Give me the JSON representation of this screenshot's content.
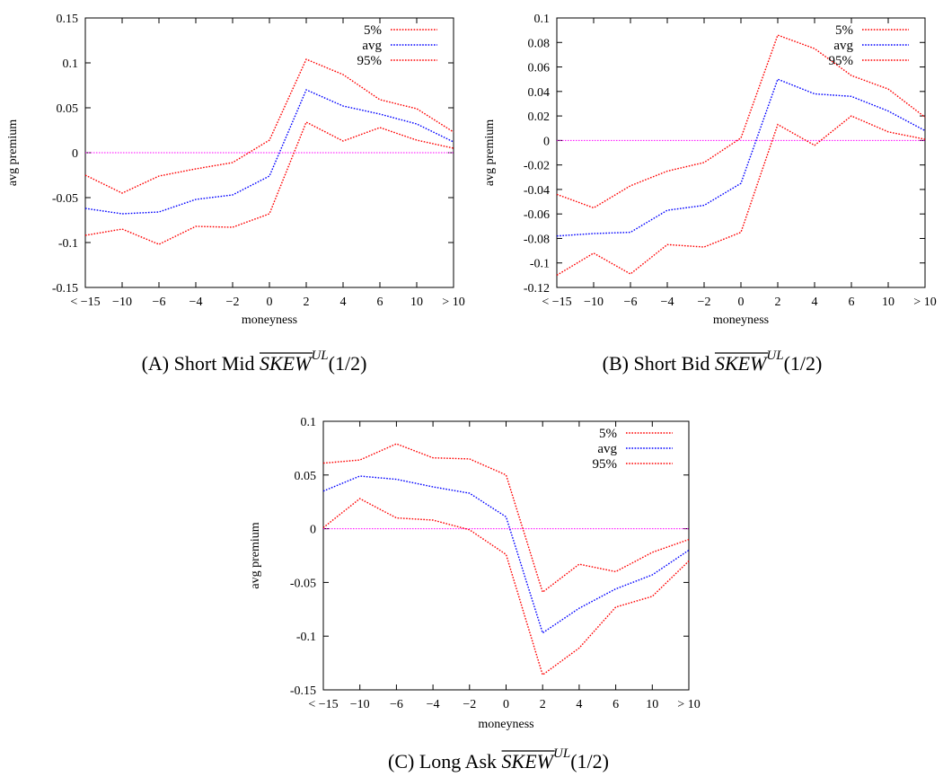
{
  "chart_data": [
    {
      "type": "line",
      "xlabel": "moneyness",
      "ylabel": "avg premium",
      "categories": [
        "< −15",
        "−10",
        "−6",
        "−4",
        "−2",
        "0",
        "2",
        "4",
        "6",
        "10",
        "> 10"
      ],
      "ylim": [
        -0.15,
        0.15
      ],
      "yticks": [
        "0.15",
        "0.1",
        "0.05",
        "0",
        "-0.05",
        "-0.1",
        "-0.15"
      ],
      "yticks_values": [
        0.15,
        0.1,
        0.05,
        0,
        -0.05,
        -0.1,
        -0.15
      ],
      "zero_line": 0,
      "legend_position": "top-right",
      "series": [
        {
          "name": "5%",
          "color": "#ff0000",
          "values": [
            -0.025,
            -0.045,
            -0.026,
            -0.018,
            -0.011,
            0.014,
            0.104,
            0.087,
            0.059,
            0.049,
            0.023
          ]
        },
        {
          "name": "avg",
          "color": "#0000ff",
          "values": [
            -0.062,
            -0.068,
            -0.066,
            -0.052,
            -0.047,
            -0.026,
            0.07,
            0.052,
            0.043,
            0.032,
            0.012
          ]
        },
        {
          "name": "95%",
          "color": "#ff0000",
          "values": [
            -0.092,
            -0.085,
            -0.102,
            -0.082,
            -0.083,
            -0.068,
            0.034,
            0.013,
            0.028,
            0.014,
            0.005
          ]
        }
      ],
      "caption": {
        "letter": "(A)",
        "text": "Short Mid",
        "math": "SKEW",
        "sup": "UL",
        "arg": "(1/2)"
      }
    },
    {
      "type": "line",
      "xlabel": "moneyness",
      "ylabel": "avg premium",
      "categories": [
        "< −15",
        "−10",
        "−6",
        "−4",
        "−2",
        "0",
        "2",
        "4",
        "6",
        "10",
        "> 10"
      ],
      "ylim": [
        -0.12,
        0.1
      ],
      "yticks": [
        "0.1",
        "0.08",
        "0.06",
        "0.04",
        "0.02",
        "0",
        "-0.02",
        "-0.04",
        "-0.06",
        "-0.08",
        "-0.1",
        "-0.12"
      ],
      "yticks_values": [
        0.1,
        0.08,
        0.06,
        0.04,
        0.02,
        0,
        -0.02,
        -0.04,
        -0.06,
        -0.08,
        -0.1,
        -0.12
      ],
      "zero_line": 0,
      "legend_position": "top-right",
      "series": [
        {
          "name": "5%",
          "color": "#ff0000",
          "values": [
            -0.044,
            -0.055,
            -0.037,
            -0.025,
            -0.018,
            0.002,
            0.086,
            0.075,
            0.053,
            0.042,
            0.019
          ]
        },
        {
          "name": "avg",
          "color": "#0000ff",
          "values": [
            -0.078,
            -0.076,
            -0.075,
            -0.057,
            -0.053,
            -0.035,
            0.05,
            0.038,
            0.036,
            0.024,
            0.008
          ]
        },
        {
          "name": "95%",
          "color": "#ff0000",
          "values": [
            -0.11,
            -0.092,
            -0.109,
            -0.085,
            -0.087,
            -0.075,
            0.013,
            -0.004,
            0.02,
            0.007,
            0.001
          ]
        }
      ],
      "caption": {
        "letter": "(B)",
        "text": "Short Bid",
        "math": "SKEW",
        "sup": "UL",
        "arg": "(1/2)"
      }
    },
    {
      "type": "line",
      "xlabel": "moneyness",
      "ylabel": "avg premium",
      "categories": [
        "< −15",
        "−10",
        "−6",
        "−4",
        "−2",
        "0",
        "2",
        "4",
        "6",
        "10",
        "> 10"
      ],
      "ylim": [
        -0.15,
        0.1
      ],
      "yticks": [
        "0.1",
        "0.05",
        "0",
        "-0.05",
        "-0.1",
        "-0.15"
      ],
      "yticks_values": [
        0.1,
        0.05,
        0,
        -0.05,
        -0.1,
        -0.15
      ],
      "zero_line": 0,
      "legend_position": "top-right",
      "series": [
        {
          "name": "5%",
          "color": "#ff0000",
          "values": [
            0.061,
            0.064,
            0.079,
            0.066,
            0.065,
            0.05,
            -0.059,
            -0.033,
            -0.04,
            -0.022,
            -0.01
          ]
        },
        {
          "name": "avg",
          "color": "#0000ff",
          "values": [
            0.035,
            0.049,
            0.046,
            0.039,
            0.033,
            0.011,
            -0.097,
            -0.074,
            -0.056,
            -0.043,
            -0.02
          ]
        },
        {
          "name": "95%",
          "color": "#ff0000",
          "values": [
            0.001,
            0.028,
            0.01,
            0.008,
            -0.001,
            -0.024,
            -0.136,
            -0.111,
            -0.073,
            -0.063,
            -0.03
          ]
        }
      ],
      "caption": {
        "letter": "(C)",
        "text": "Long Ask",
        "math": "SKEW",
        "sup": "UL",
        "arg": "(1/2)"
      }
    }
  ]
}
